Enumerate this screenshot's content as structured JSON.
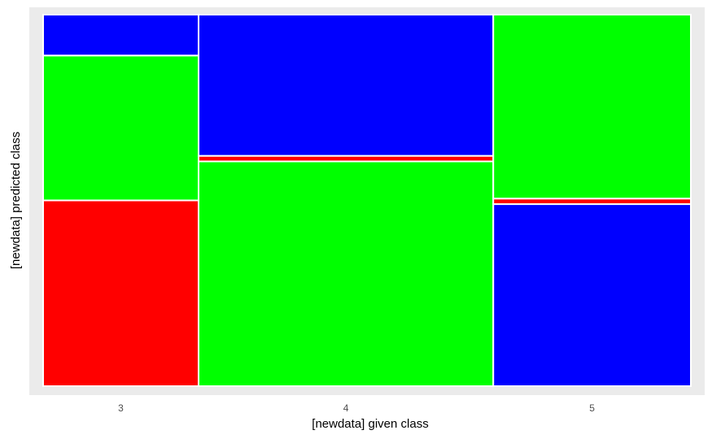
{
  "chart_data": {
    "type": "mosaic",
    "xlabel": "[newdata] given class",
    "ylabel": "[newdata] predicted class",
    "categories": [
      "3",
      "4",
      "5"
    ],
    "column_widths": [
      0.24,
      0.455,
      0.305
    ],
    "predicted_order_bottom_to_top": [
      "red",
      "green",
      "blue"
    ],
    "columns": [
      {
        "given": "3",
        "segments": [
          {
            "color": "#ff0000",
            "share": 0.5
          },
          {
            "color": "#00ff00",
            "share": 0.39
          },
          {
            "color": "#0000ff",
            "share": 0.11
          }
        ]
      },
      {
        "given": "4",
        "segments": [
          {
            "color": "#00ff00",
            "share": 0.605
          },
          {
            "color": "#ff0000",
            "share": 0.015
          },
          {
            "color": "#0000ff",
            "share": 0.38
          }
        ]
      },
      {
        "given": "5",
        "segments": [
          {
            "color": "#0000ff",
            "share": 0.49
          },
          {
            "color": "#ff0000",
            "share": 0.015
          },
          {
            "color": "#00ff00",
            "share": 0.495
          }
        ]
      }
    ],
    "panel_background": "#ebebeb",
    "tile_border": "#ffffff"
  }
}
